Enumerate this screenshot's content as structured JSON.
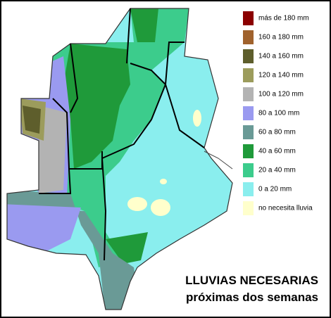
{
  "legend": {
    "items": [
      {
        "label": "más de 180 mm",
        "color": "#8b0000"
      },
      {
        "label": "160 a 180 mm",
        "color": "#a0622d"
      },
      {
        "label": "140 a 160 mm",
        "color": "#5e5e2c"
      },
      {
        "label": "120 a 140 mm",
        "color": "#9c9c5c"
      },
      {
        "label": "100 a 120 mm",
        "color": "#b3b3b3"
      },
      {
        "label": "80 a 100 mm",
        "color": "#9a9af0"
      },
      {
        "label": "60 a 80 mm",
        "color": "#6a9a96"
      },
      {
        "label": "40 a 60 mm",
        "color": "#1f9a3a"
      },
      {
        "label": "20 a 40 mm",
        "color": "#3ccc8c"
      },
      {
        "label": "0 a 20 mm",
        "color": "#8aeeee"
      },
      {
        "label": "no necesita lluvia",
        "color": "#ffffcc"
      }
    ]
  },
  "title": {
    "line1": "LLUVIAS NECESARIAS",
    "line2": "próximas dos semanas"
  }
}
